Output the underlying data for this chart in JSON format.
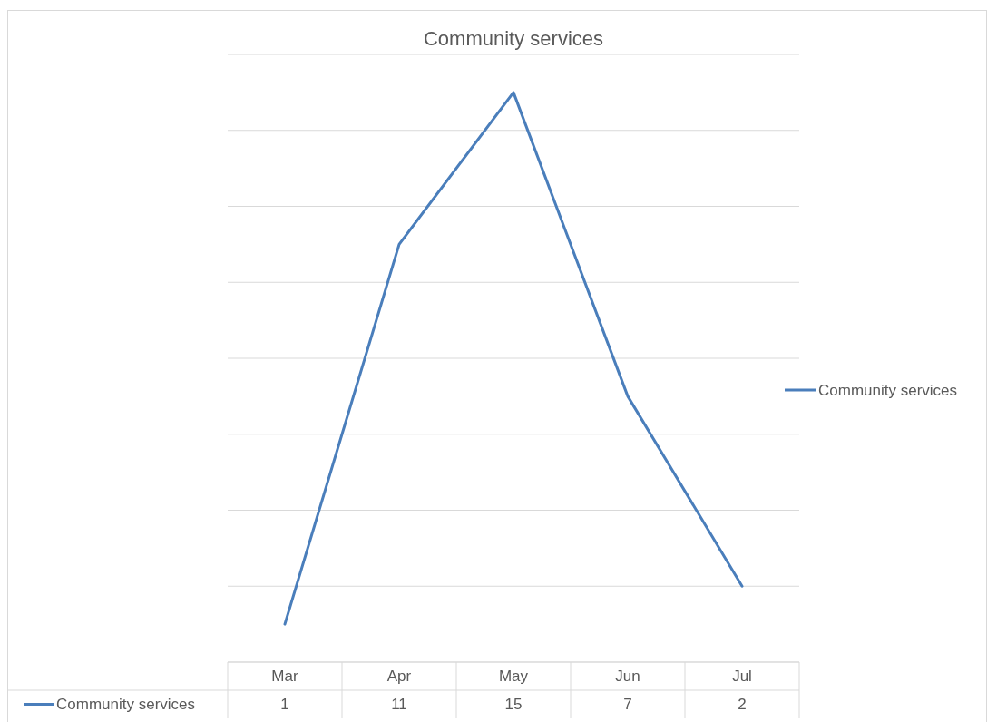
{
  "chart_data": {
    "type": "line",
    "title": "Community services",
    "categories": [
      "Mar",
      "Apr",
      "May",
      "Jun",
      "Jul"
    ],
    "series": [
      {
        "name": "Community services",
        "color": "#4a7ebb",
        "values": [
          1,
          11,
          15,
          7,
          2
        ]
      }
    ],
    "ylim": [
      0,
      16
    ],
    "yticks": [
      {
        "value": 0,
        "label": null
      },
      {
        "value": 2,
        "label": null
      },
      {
        "value": 4,
        "label": null
      },
      {
        "value": 6,
        "label": null
      },
      {
        "value": 8,
        "label": null
      },
      {
        "value": 10,
        "label": null
      },
      {
        "value": 12,
        "label": null
      },
      {
        "value": 14,
        "label": null
      },
      {
        "value": 16,
        "label": null
      }
    ],
    "tick_labels": "x",
    "grid": "y",
    "legend": "right",
    "data_labels": true,
    "marker": "none",
    "line_style": "solid"
  }
}
